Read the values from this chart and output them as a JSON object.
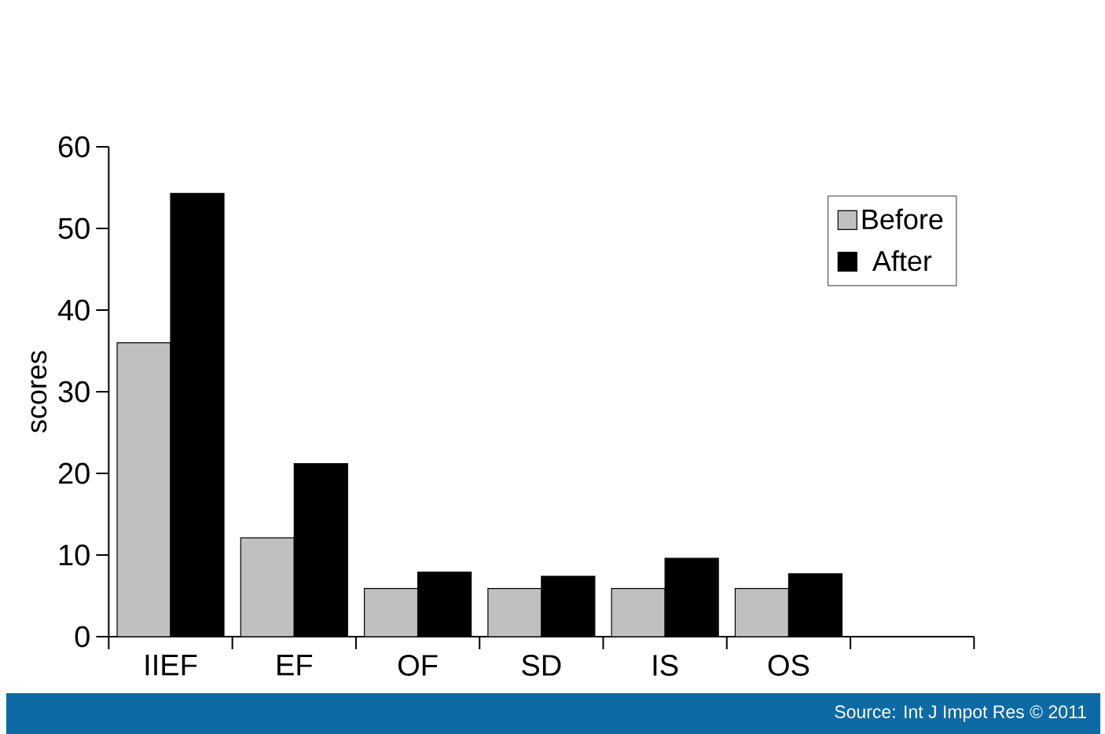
{
  "chart_data": {
    "type": "bar",
    "categories": [
      "IIEF",
      "EF",
      "OF",
      "SD",
      "IS",
      "OS",
      null
    ],
    "series": [
      {
        "name": "Before",
        "color": "#c0c0c0",
        "values": [
          36.0,
          12.1,
          5.9,
          5.9,
          5.9,
          5.9,
          null
        ]
      },
      {
        "name": "After",
        "color": "#000000",
        "values": [
          54.3,
          21.2,
          7.9,
          7.4,
          9.6,
          7.7,
          null
        ]
      }
    ],
    "ylabel": "scores",
    "ylim": [
      0,
      60
    ],
    "yticks": [
      0,
      10,
      20,
      30,
      40,
      50,
      60
    ],
    "legend": "top right",
    "annotations": [
      "Source: Int J Impot Res © 2011"
    ]
  }
}
